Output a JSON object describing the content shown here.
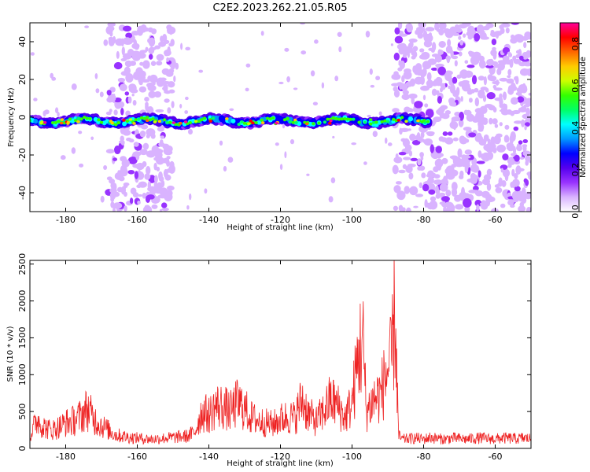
{
  "title": "C2E2.2023.262.21.05.R05",
  "chart_data": [
    {
      "type": "heatmap",
      "xlabel": "Height of straight line (km)",
      "ylabel": "Frequency (Hz)",
      "xlim": [
        -190,
        -50
      ],
      "ylim": [
        -50,
        50
      ],
      "x_ticks": [
        -180,
        -160,
        -140,
        -120,
        -100,
        -80,
        -60
      ],
      "y_ticks": [
        -40,
        -20,
        0,
        20,
        40
      ],
      "colorbar": {
        "label": "Normalized spectral amplitude",
        "range": [
          0,
          0.9
        ],
        "ticks": [
          0.0,
          0.2,
          0.4,
          0.6,
          0.8
        ],
        "colors": [
          "#ffffff",
          "#d9b3ff",
          "#9933ff",
          "#5500ee",
          "#0000ff",
          "#0099ff",
          "#00ffff",
          "#00ff66",
          "#33ff00",
          "#ccff00",
          "#ffcc00",
          "#ff6600",
          "#ff0000",
          "#ff0099"
        ]
      },
      "signal_band": {
        "frequency_hz": -2,
        "x_range": [
          -190,
          -78
        ],
        "peak_amplitude": 0.9
      },
      "noise_regions": [
        [
          -168,
          -150
        ],
        [
          -88,
          -50
        ]
      ],
      "grid": false
    },
    {
      "type": "line",
      "xlabel": "Height of straight line (km)",
      "ylabel": "SNR (10 * v/v)",
      "xlim": [
        -190,
        -50
      ],
      "ylim": [
        0,
        2550
      ],
      "x_ticks": [
        -180,
        -160,
        -140,
        -120,
        -100,
        -80,
        -60
      ],
      "y_ticks": [
        0,
        500,
        1000,
        1500,
        2000,
        2500
      ],
      "color": "#ee2222",
      "x": [
        -190,
        -188,
        -186,
        -184,
        -182,
        -180,
        -178,
        -176,
        -174,
        -172,
        -170,
        -168,
        -166,
        -164,
        -162,
        -160,
        -158,
        -156,
        -154,
        -152,
        -150,
        -148,
        -146,
        -144,
        -142,
        -140,
        -138,
        -136,
        -134,
        -132,
        -130,
        -128,
        -126,
        -124,
        -122,
        -120,
        -118,
        -116,
        -114,
        -112,
        -110,
        -108,
        -106,
        -104,
        -102,
        -100,
        -98,
        -97,
        -96,
        -94,
        -92,
        -90,
        -89,
        -88,
        -87,
        -86,
        -84,
        -82,
        -80,
        -78,
        -76,
        -74,
        -72,
        -70,
        -68,
        -66,
        -64,
        -62,
        -60,
        -58,
        -56,
        -54,
        -52,
        -50
      ],
      "y": [
        200,
        480,
        350,
        300,
        350,
        420,
        450,
        520,
        650,
        480,
        380,
        300,
        220,
        200,
        180,
        170,
        160,
        150,
        160,
        170,
        180,
        190,
        200,
        260,
        600,
        550,
        700,
        680,
        600,
        750,
        650,
        500,
        450,
        420,
        400,
        480,
        520,
        500,
        800,
        550,
        450,
        600,
        800,
        700,
        500,
        750,
        1600,
        1800,
        600,
        800,
        900,
        1300,
        1400,
        2300,
        200,
        150,
        160,
        170,
        150,
        180,
        160,
        150,
        170,
        160,
        150,
        165,
        170,
        160,
        155,
        170,
        165,
        160,
        170,
        160
      ]
    }
  ]
}
